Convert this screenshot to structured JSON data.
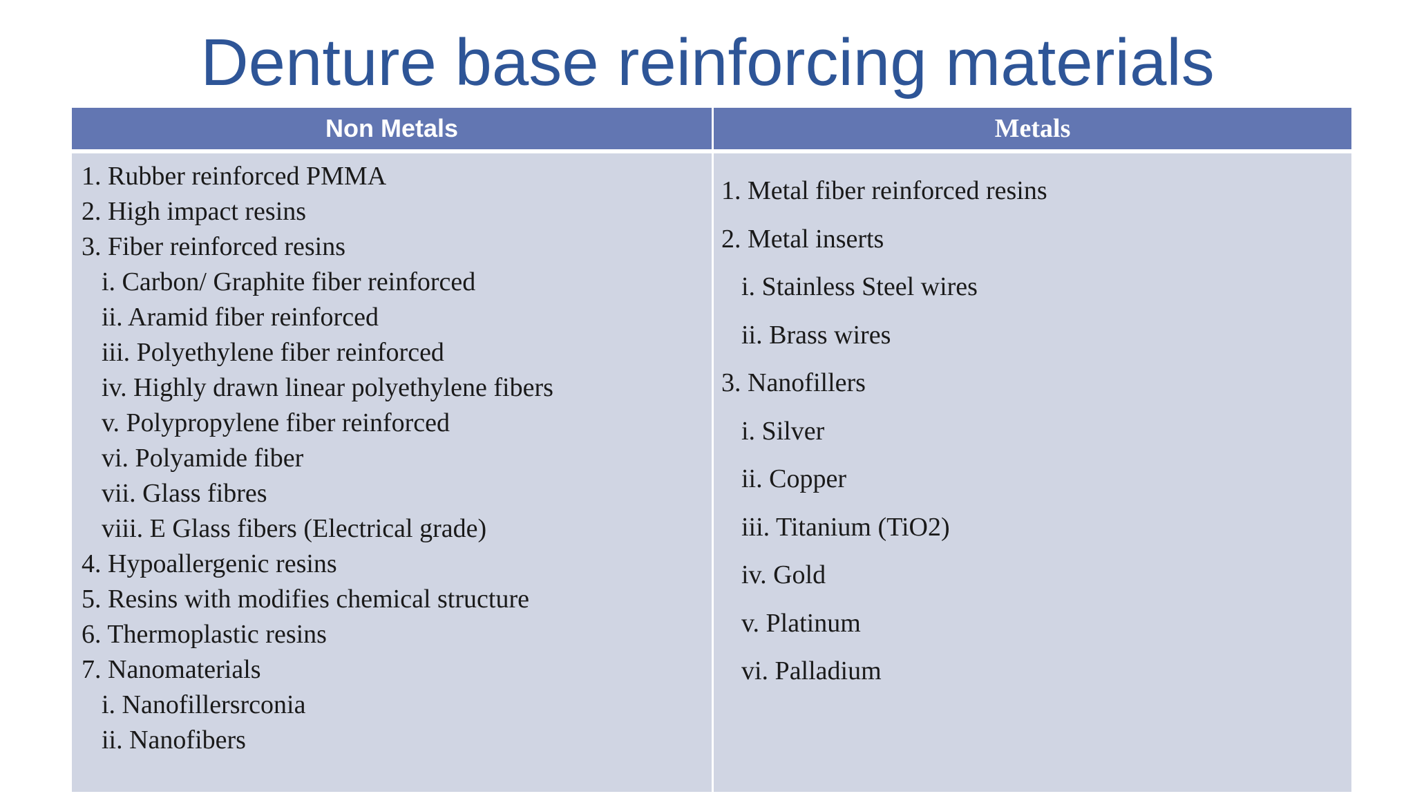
{
  "title": "Denture base reinforcing materials",
  "table": {
    "headers": {
      "left": "Non Metals",
      "right": "Metals"
    },
    "header_color": "#6276b2",
    "body_color": "#d0d5e3",
    "left_items": [
      {
        "text": "1. Rubber reinforced PMMA",
        "level": 0
      },
      {
        "text": "2. High impact resins",
        "level": 0
      },
      {
        "text": "3. Fiber reinforced resins",
        "level": 0
      },
      {
        "text": "i. Carbon/ Graphite fiber reinforced",
        "level": 1
      },
      {
        "text": "ii. Aramid fiber reinforced",
        "level": 1
      },
      {
        "text": "iii. Polyethylene fiber reinforced",
        "level": 1
      },
      {
        "text": "iv. Highly drawn linear polyethylene fibers",
        "level": 1
      },
      {
        "text": "v. Polypropylene fiber reinforced",
        "level": 1
      },
      {
        "text": "vi. Polyamide fiber",
        "level": 1
      },
      {
        "text": "vii. Glass fibres",
        "level": 1
      },
      {
        "text": "viii. E Glass fibers (Electrical grade)",
        "level": 1
      },
      {
        "text": "4. Hypoallergenic resins",
        "level": 0
      },
      {
        "text": "5. Resins with modifies chemical structure",
        "level": 0
      },
      {
        "text": "6. Thermoplastic resins",
        "level": 0
      },
      {
        "text": "7. Nanomaterials",
        "level": 0
      },
      {
        "text": "i. Nanofillersrconia",
        "level": 1
      },
      {
        "text": "ii. Nanofibers",
        "level": 1
      }
    ],
    "right_items": [
      {
        "text": "1. Metal fiber reinforced resins",
        "level": 0
      },
      {
        "text": "2. Metal inserts",
        "level": 0
      },
      {
        "text": "i. Stainless Steel wires",
        "level": 1
      },
      {
        "text": "ii. Brass wires",
        "level": 1
      },
      {
        "text": "3. Nanofillers",
        "level": 0
      },
      {
        "text": "i. Silver",
        "level": 1
      },
      {
        "text": "ii. Copper",
        "level": 1
      },
      {
        "text": "iii. Titanium (TiO2)",
        "level": 1
      },
      {
        "text": "iv. Gold",
        "level": 1
      },
      {
        "text": "v. Platinum",
        "level": 1
      },
      {
        "text": "vi. Palladium",
        "level": 1
      }
    ]
  },
  "colors": {
    "title": "#2e5597",
    "text": "#1a1a1a",
    "divider": "#ffffff"
  }
}
